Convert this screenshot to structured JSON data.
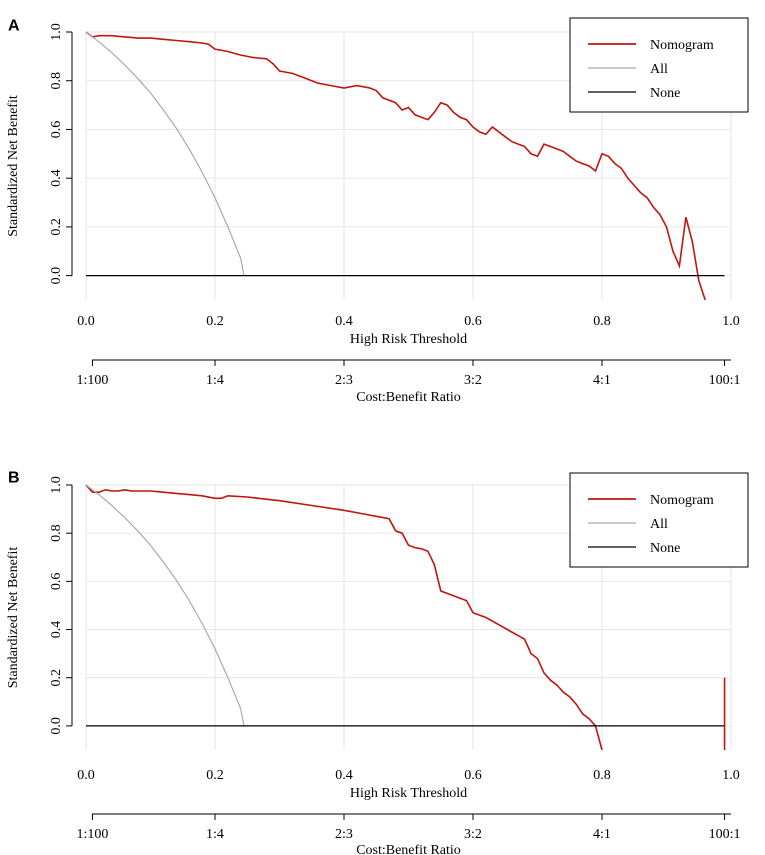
{
  "chart_data": [
    {
      "panel": "A",
      "type": "line",
      "title": "",
      "xlabel": "High Risk Threshold",
      "ylabel": "Standardized Net Benefit",
      "xlim": [
        0,
        1
      ],
      "ylim": [
        -0.1,
        1.0
      ],
      "x_ticks": [
        "0.0",
        "0.2",
        "0.4",
        "0.6",
        "0.8",
        "1.0"
      ],
      "y_ticks": [
        "0.0",
        "0.2",
        "0.4",
        "0.6",
        "0.8",
        "1.0"
      ],
      "cost_benefit_label": "Cost:Benefit Ratio",
      "cost_benefit_ticks": [
        "1:100",
        "1:4",
        "2:3",
        "3:2",
        "4:1",
        "100:1"
      ],
      "legend": [
        "Nomogram",
        "All",
        "None"
      ],
      "series": [
        {
          "name": "Nomogram",
          "color": "#c0150f",
          "x": [
            0.0,
            0.01,
            0.02,
            0.04,
            0.06,
            0.08,
            0.1,
            0.12,
            0.14,
            0.16,
            0.18,
            0.19,
            0.2,
            0.22,
            0.24,
            0.26,
            0.28,
            0.29,
            0.3,
            0.32,
            0.34,
            0.36,
            0.38,
            0.4,
            0.42,
            0.44,
            0.45,
            0.46,
            0.48,
            0.49,
            0.5,
            0.51,
            0.52,
            0.53,
            0.54,
            0.55,
            0.56,
            0.57,
            0.58,
            0.59,
            0.6,
            0.61,
            0.62,
            0.63,
            0.64,
            0.65,
            0.66,
            0.67,
            0.68,
            0.69,
            0.7,
            0.71,
            0.72,
            0.73,
            0.74,
            0.75,
            0.76,
            0.77,
            0.78,
            0.79,
            0.8,
            0.81,
            0.82,
            0.83,
            0.84,
            0.85,
            0.86,
            0.87,
            0.88,
            0.89,
            0.9,
            0.91,
            0.92,
            0.93,
            0.94,
            0.95,
            0.96
          ],
          "values": [
            1.0,
            0.98,
            0.985,
            0.985,
            0.98,
            0.975,
            0.975,
            0.97,
            0.965,
            0.96,
            0.955,
            0.95,
            0.93,
            0.92,
            0.905,
            0.895,
            0.89,
            0.87,
            0.84,
            0.83,
            0.81,
            0.79,
            0.78,
            0.77,
            0.78,
            0.77,
            0.76,
            0.73,
            0.71,
            0.68,
            0.69,
            0.66,
            0.65,
            0.64,
            0.67,
            0.71,
            0.7,
            0.67,
            0.65,
            0.64,
            0.61,
            0.59,
            0.58,
            0.61,
            0.59,
            0.57,
            0.55,
            0.54,
            0.53,
            0.5,
            0.49,
            0.54,
            0.53,
            0.52,
            0.51,
            0.49,
            0.47,
            0.46,
            0.45,
            0.43,
            0.5,
            0.49,
            0.46,
            0.44,
            0.4,
            0.37,
            0.34,
            0.32,
            0.28,
            0.25,
            0.2,
            0.1,
            0.04,
            0.24,
            0.14,
            -0.02,
            -0.1
          ]
        },
        {
          "name": "All",
          "color": "#aaaaaa",
          "x": [
            0.0,
            0.02,
            0.04,
            0.06,
            0.08,
            0.1,
            0.12,
            0.14,
            0.16,
            0.18,
            0.2,
            0.22,
            0.24,
            0.245
          ],
          "values": [
            1.0,
            0.96,
            0.915,
            0.865,
            0.81,
            0.75,
            0.68,
            0.605,
            0.52,
            0.425,
            0.32,
            0.2,
            0.07,
            0.0
          ]
        },
        {
          "name": "None",
          "color": "#000000",
          "x": [
            0.0,
            0.99
          ],
          "values": [
            0.0,
            0.0
          ]
        }
      ]
    },
    {
      "panel": "B",
      "type": "line",
      "title": "",
      "xlabel": "High Risk Threshold",
      "ylabel": "Standardized Net Benefit",
      "xlim": [
        0,
        1
      ],
      "ylim": [
        -0.1,
        1.0
      ],
      "x_ticks": [
        "0.0",
        "0.2",
        "0.4",
        "0.6",
        "0.8",
        "1.0"
      ],
      "y_ticks": [
        "0.0",
        "0.2",
        "0.4",
        "0.6",
        "0.8",
        "1.0"
      ],
      "cost_benefit_label": "Cost:Benefit Ratio",
      "cost_benefit_ticks": [
        "1:100",
        "1:4",
        "2:3",
        "3:2",
        "4:1",
        "100:1"
      ],
      "legend": [
        "Nomogram",
        "All",
        "None"
      ],
      "series": [
        {
          "name": "Nomogram",
          "color": "#c0150f",
          "x": [
            0.0,
            0.01,
            0.02,
            0.03,
            0.04,
            0.05,
            0.06,
            0.07,
            0.08,
            0.09,
            0.1,
            0.12,
            0.14,
            0.16,
            0.18,
            0.2,
            0.21,
            0.22,
            0.25,
            0.3,
            0.35,
            0.4,
            0.44,
            0.47,
            0.48,
            0.49,
            0.5,
            0.51,
            0.52,
            0.53,
            0.54,
            0.55,
            0.56,
            0.57,
            0.58,
            0.59,
            0.6,
            0.62,
            0.64,
            0.66,
            0.68,
            0.69,
            0.7,
            0.71,
            0.72,
            0.73,
            0.74,
            0.75,
            0.76,
            0.77,
            0.78,
            0.79,
            0.8
          ],
          "values": [
            1.0,
            0.97,
            0.97,
            0.98,
            0.975,
            0.975,
            0.98,
            0.975,
            0.975,
            0.975,
            0.975,
            0.97,
            0.965,
            0.96,
            0.955,
            0.945,
            0.945,
            0.955,
            0.95,
            0.935,
            0.915,
            0.895,
            0.875,
            0.86,
            0.81,
            0.8,
            0.75,
            0.74,
            0.735,
            0.725,
            0.67,
            0.56,
            0.55,
            0.54,
            0.53,
            0.52,
            0.47,
            0.45,
            0.42,
            0.39,
            0.36,
            0.3,
            0.28,
            0.22,
            0.19,
            0.17,
            0.14,
            0.12,
            0.09,
            0.05,
            0.03,
            0.0,
            -0.1
          ]
        },
        {
          "name": "All",
          "color": "#aaaaaa",
          "x": [
            0.0,
            0.02,
            0.04,
            0.06,
            0.08,
            0.1,
            0.12,
            0.14,
            0.16,
            0.18,
            0.2,
            0.22,
            0.24,
            0.245
          ],
          "values": [
            1.0,
            0.96,
            0.915,
            0.865,
            0.81,
            0.75,
            0.68,
            0.605,
            0.52,
            0.425,
            0.32,
            0.2,
            0.07,
            0.0
          ]
        },
        {
          "name": "None",
          "color": "#000000",
          "x": [
            0.0,
            0.99
          ],
          "values": [
            0.0,
            0.0
          ]
        }
      ]
    }
  ]
}
